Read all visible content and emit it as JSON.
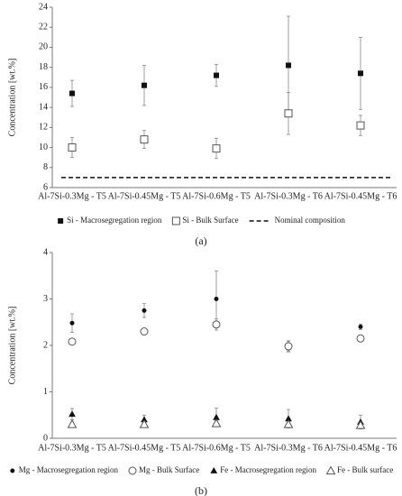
{
  "chart_data": [
    {
      "type": "errorbar",
      "panel_label": "(a)",
      "y_label": "Concentration [wt.%]",
      "categories": [
        "Al-7Si-0.3Mg - T5",
        "Al-7Si-0.45Mg - T5",
        "Al-7Si-0.6Mg - T5",
        "Al-7Si-0.3Mg - T6",
        "Al-7Si-0.45Mg - T6"
      ],
      "ylim": [
        6,
        24
      ],
      "yticks": [
        6,
        8,
        10,
        12,
        14,
        16,
        18,
        20,
        22,
        24
      ],
      "series": [
        {
          "name": "Si - Macrosegregation region",
          "marker": "square-filled",
          "color": "#111111",
          "values": [
            15.4,
            16.2,
            17.2,
            18.2,
            17.4
          ],
          "errors": [
            1.3,
            2.0,
            1.1,
            4.9,
            3.6
          ]
        },
        {
          "name": "Si - Bulk Surface",
          "marker": "square-open",
          "color": "#555555",
          "values": [
            10.0,
            10.8,
            9.9,
            13.4,
            12.2
          ],
          "errors": [
            1.0,
            0.9,
            1.0,
            2.1,
            1.0
          ]
        }
      ],
      "reference_line": {
        "name": "Nominal composition",
        "value": 7,
        "style": "dashed",
        "color": "#111111"
      }
    },
    {
      "type": "errorbar",
      "panel_label": "(b)",
      "y_label": "Concentration [wt.%]",
      "categories": [
        "Al-7Si-0.3Mg - T5",
        "Al-7Si-0.45Mg - T5",
        "Al-7Si-0.6Mg - T5",
        "Al-7Si-0.3Mg - T6",
        "Al-7Si-0.45Mg - T6"
      ],
      "ylim": [
        0,
        4
      ],
      "yticks": [
        0,
        1,
        2,
        3,
        4
      ],
      "series": [
        {
          "name": "Mg - Macrosegregation region",
          "marker": "circle-filled",
          "color": "#111111",
          "values": [
            2.48,
            2.75,
            3.0,
            1.98,
            2.4
          ],
          "errors": [
            0.2,
            0.15,
            0.6,
            0.12,
            0.06
          ]
        },
        {
          "name": "Mg - Bulk Surface",
          "marker": "circle-open",
          "color": "#555555",
          "values": [
            2.08,
            2.3,
            2.45,
            1.98,
            2.15
          ],
          "errors": [
            0.05,
            0.05,
            0.12,
            0.1,
            0.05
          ]
        },
        {
          "name": "Fe - Macrosegregation region",
          "marker": "triangle-filled",
          "color": "#111111",
          "values": [
            0.52,
            0.4,
            0.45,
            0.42,
            0.35
          ],
          "errors": [
            0.12,
            0.1,
            0.2,
            0.2,
            0.15
          ]
        },
        {
          "name": "Fe - Bulk surface",
          "marker": "triangle-open",
          "color": "#555555",
          "values": [
            0.3,
            0.3,
            0.32,
            0.3,
            0.28
          ],
          "errors": [
            0.05,
            0.05,
            0.06,
            0.05,
            0.05
          ]
        }
      ]
    }
  ]
}
